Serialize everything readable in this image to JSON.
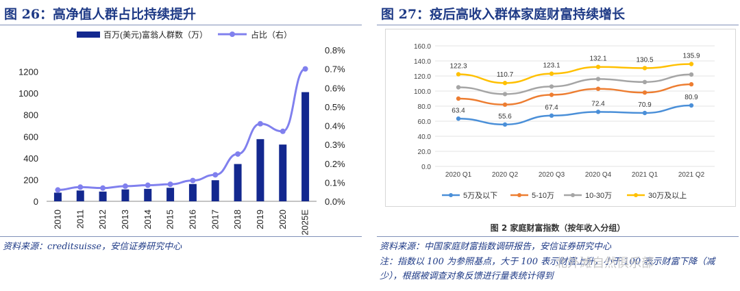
{
  "left": {
    "title": "图 26：高净值人群占比持续提升",
    "source": "资料来源：creditsuisse，安信证券研究中心",
    "chart_data": {
      "type": "bar",
      "categories": [
        "2010",
        "2011",
        "2012",
        "2013",
        "2014",
        "2015",
        "2016",
        "2017",
        "2018",
        "2019",
        "2020",
        "2025E"
      ],
      "series": [
        {
          "name": "百万(美元)富翁人群数（万）",
          "type": "bar",
          "axis": "left",
          "values": [
            80,
            100,
            90,
            110,
            115,
            125,
            160,
            195,
            345,
            575,
            525,
            1010
          ]
        },
        {
          "name": "占比（右）",
          "type": "line",
          "axis": "right",
          "values": [
            0.0006,
            0.00075,
            0.0007,
            0.0008,
            0.00085,
            0.0009,
            0.0011,
            0.0014,
            0.0025,
            0.0041,
            0.0037,
            0.007
          ]
        }
      ],
      "ylim": [
        0,
        1400
      ],
      "y2lim": [
        0,
        0.008
      ],
      "yticks": [
        "0",
        "200",
        "400",
        "600",
        "800",
        "1000",
        "1200"
      ],
      "y2ticks": [
        "0.0%",
        "0.1%",
        "0.2%",
        "0.3%",
        "0.4%",
        "0.5%",
        "0.6%",
        "0.7%",
        "0.8%"
      ],
      "legend_position": "top",
      "grid": false,
      "colors": {
        "bar": "#13288f",
        "line": "#8080ee"
      }
    }
  },
  "right": {
    "title": "图 27：疫后高收入群体家庭财富持续增长",
    "caption": "图 2 家庭财富指数（按年收入分组）",
    "source": "资料来源：中国家庭财富指数调研报告，安信证券研究中心",
    "note": "注：指数以 100 为参照基点，大于 100 表示财富上升，小于 100 表示财富下降（减少），根据被调查对象反馈进行量表统计得到",
    "watermark": "北外滩自然俱乐部",
    "chart_data": {
      "type": "line",
      "categories": [
        "2020 Q1",
        "2020 Q2",
        "2020 Q3",
        "2020 Q4",
        "2021 Q1",
        "2021 Q2"
      ],
      "series": [
        {
          "name": "5万及以下",
          "color": "#4a8fd8",
          "values": [
            63.4,
            55.6,
            67.4,
            72.4,
            70.9,
            80.9
          ],
          "labels": true
        },
        {
          "name": "5-10万",
          "color": "#ed7d31",
          "values": [
            90,
            82,
            95,
            103,
            98,
            109
          ],
          "labels": false
        },
        {
          "name": "10-30万",
          "color": "#a5a5a5",
          "values": [
            105,
            96,
            106,
            116,
            112,
            122
          ],
          "labels": false
        },
        {
          "name": "30万及以上",
          "color": "#ffc000",
          "values": [
            122.3,
            110.7,
            123.1,
            132.1,
            130.5,
            135.9
          ],
          "labels": true
        }
      ],
      "ylim": [
        0,
        160
      ],
      "yticks": [
        "0.0",
        "20.0",
        "40.0",
        "60.0",
        "80.0",
        "100.0",
        "120.0",
        "140.0",
        "160.0"
      ],
      "legend_position": "bottom",
      "grid": true
    }
  }
}
